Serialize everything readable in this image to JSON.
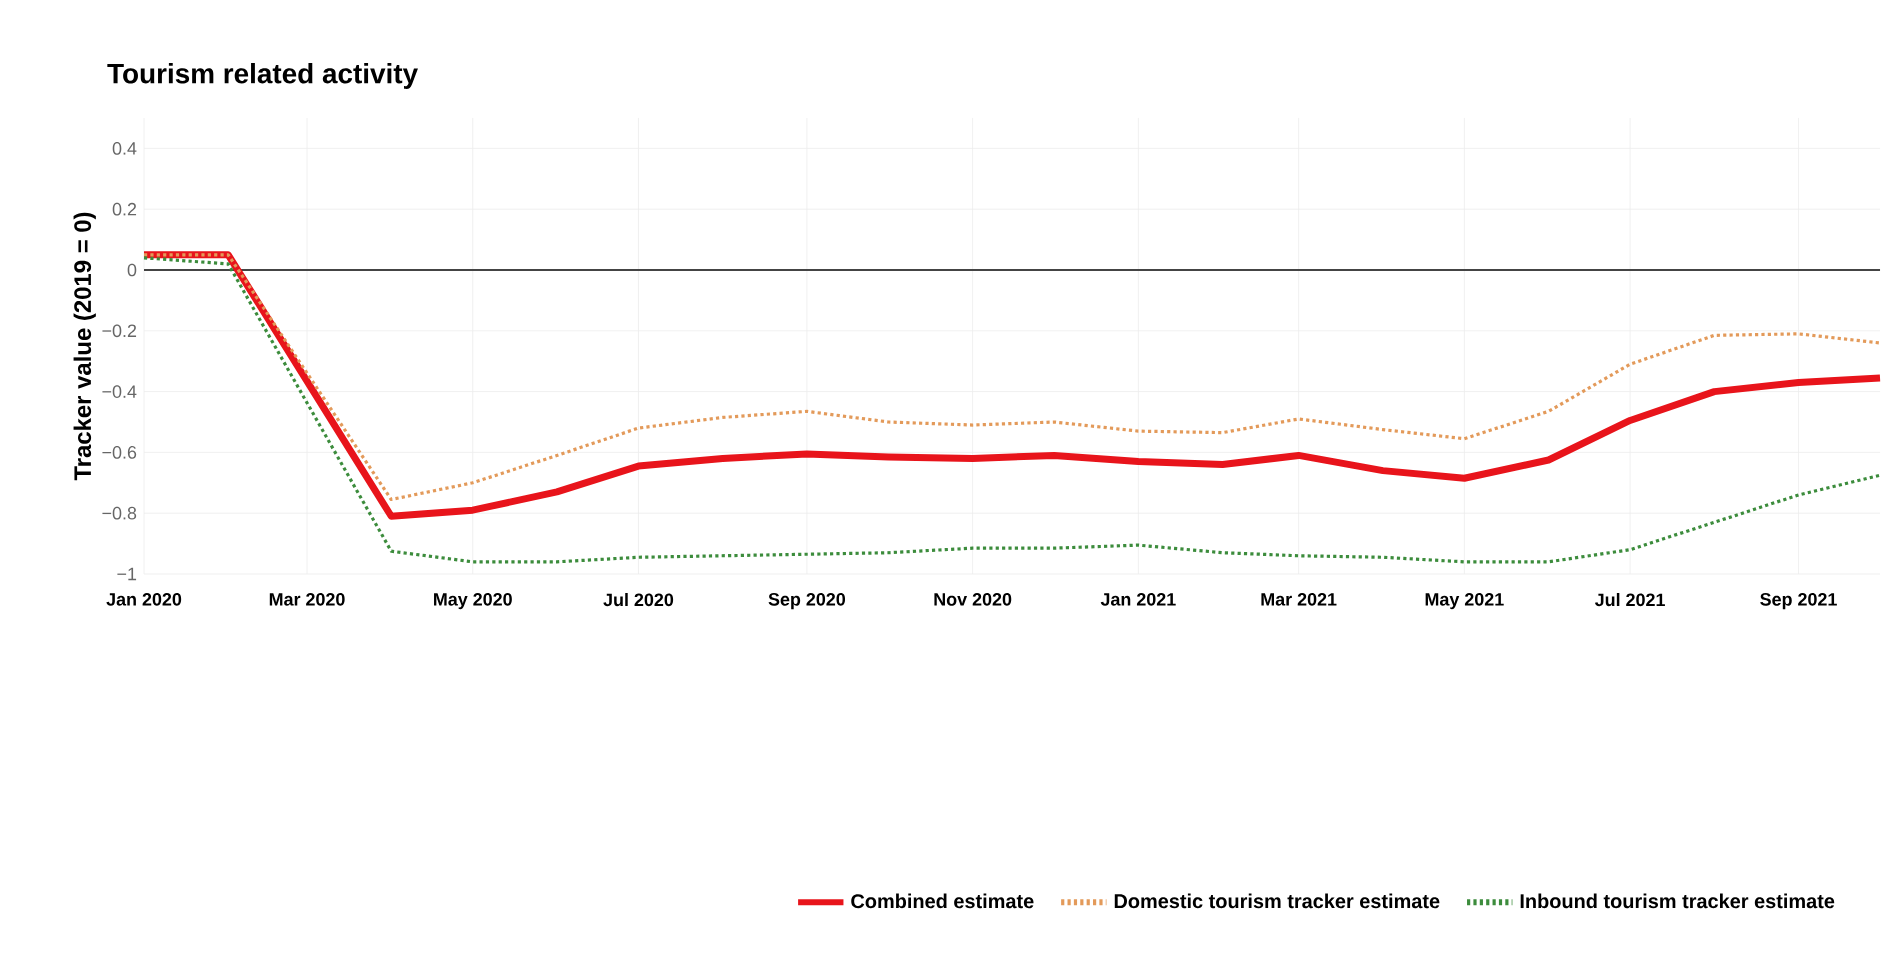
{
  "chart_data": {
    "type": "line",
    "title": "Tourism related activity",
    "ylabel": "Tracker value (2019 = 0)",
    "xlim": [
      "2020-01-01",
      "2021-10-01"
    ],
    "ylim": [
      -1,
      0.5
    ],
    "xticks": [
      {
        "value": "2020-01-01",
        "label": "Jan 2020"
      },
      {
        "value": "2020-03-01",
        "label": "Mar 2020"
      },
      {
        "value": "2020-05-01",
        "label": "May 2020"
      },
      {
        "value": "2020-07-01",
        "label": "Jul 2020"
      },
      {
        "value": "2020-09-01",
        "label": "Sep 2020"
      },
      {
        "value": "2020-11-01",
        "label": "Nov 2020"
      },
      {
        "value": "2021-01-01",
        "label": "Jan 2021"
      },
      {
        "value": "2021-03-01",
        "label": "Mar 2021"
      },
      {
        "value": "2021-05-01",
        "label": "May 2021"
      },
      {
        "value": "2021-07-01",
        "label": "Jul 2021"
      },
      {
        "value": "2021-09-01",
        "label": "Sep 2021"
      }
    ],
    "yticks": [
      {
        "value": 0.4,
        "label": "0.4"
      },
      {
        "value": 0.2,
        "label": "0.2"
      },
      {
        "value": 0,
        "label": "0"
      },
      {
        "value": -0.2,
        "label": "−0.2"
      },
      {
        "value": -0.4,
        "label": "−0.4"
      },
      {
        "value": -0.6,
        "label": "−0.6"
      },
      {
        "value": -0.8,
        "label": "−0.8"
      },
      {
        "value": -1,
        "label": "−1"
      }
    ],
    "grid": true,
    "legend": "bottom",
    "marker": "none",
    "ref_lines": [
      {
        "axis": "y",
        "value": 0,
        "color": "#444444"
      }
    ],
    "series": [
      {
        "name": "Combined estimate",
        "color": "#e8141b",
        "line_style": "solid",
        "x": [
          "2020-01",
          "2020-02",
          "2020-04",
          "2020-05",
          "2020-06",
          "2020-07",
          "2020-08",
          "2020-09",
          "2020-10",
          "2020-11",
          "2020-12",
          "2021-01",
          "2021-02",
          "2021-03",
          "2021-04",
          "2021-05",
          "2021-06",
          "2021-07",
          "2021-08",
          "2021-09",
          "2021-10"
        ],
        "values": [
          0.05,
          0.05,
          -0.81,
          -0.79,
          -0.73,
          -0.645,
          -0.62,
          -0.605,
          -0.615,
          -0.62,
          -0.61,
          -0.63,
          -0.64,
          -0.61,
          -0.66,
          -0.685,
          -0.625,
          -0.495,
          -0.4,
          -0.37,
          -0.355
        ]
      },
      {
        "name": "Domestic tourism tracker estimate",
        "color": "#e39a5a",
        "line_style": "dotted",
        "x": [
          "2020-01",
          "2020-02",
          "2020-04",
          "2020-05",
          "2020-06",
          "2020-07",
          "2020-08",
          "2020-09",
          "2020-10",
          "2020-11",
          "2020-12",
          "2021-01",
          "2021-02",
          "2021-03",
          "2021-04",
          "2021-05",
          "2021-06",
          "2021-07",
          "2021-08",
          "2021-09",
          "2021-10"
        ],
        "values": [
          0.05,
          0.05,
          -0.755,
          -0.7,
          -0.61,
          -0.52,
          -0.485,
          -0.465,
          -0.5,
          -0.51,
          -0.5,
          -0.53,
          -0.535,
          -0.49,
          -0.525,
          -0.555,
          -0.465,
          -0.31,
          -0.215,
          -0.21,
          -0.24
        ]
      },
      {
        "name": "Inbound tourism tracker estimate",
        "color": "#3c8c3c",
        "line_style": "dotted",
        "x": [
          "2020-01",
          "2020-02",
          "2020-04",
          "2020-05",
          "2020-06",
          "2020-07",
          "2020-08",
          "2020-09",
          "2020-10",
          "2020-11",
          "2020-12",
          "2021-01",
          "2021-02",
          "2021-03",
          "2021-04",
          "2021-05",
          "2021-06",
          "2021-07",
          "2021-08",
          "2021-09",
          "2021-10"
        ],
        "values": [
          0.04,
          0.02,
          -0.925,
          -0.96,
          -0.96,
          -0.945,
          -0.94,
          -0.935,
          -0.93,
          -0.915,
          -0.915,
          -0.905,
          -0.93,
          -0.94,
          -0.945,
          -0.96,
          -0.96,
          -0.92,
          -0.83,
          -0.74,
          -0.675
        ]
      }
    ]
  }
}
